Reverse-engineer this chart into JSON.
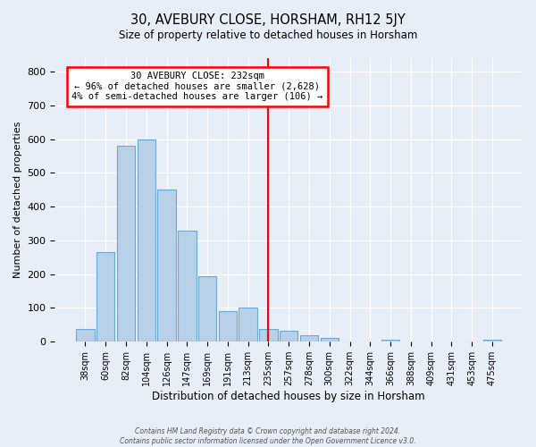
{
  "title": "30, AVEBURY CLOSE, HORSHAM, RH12 5JY",
  "subtitle": "Size of property relative to detached houses in Horsham",
  "xlabel": "Distribution of detached houses by size in Horsham",
  "ylabel": "Number of detached properties",
  "bar_labels": [
    "38sqm",
    "60sqm",
    "82sqm",
    "104sqm",
    "126sqm",
    "147sqm",
    "169sqm",
    "191sqm",
    "213sqm",
    "235sqm",
    "257sqm",
    "278sqm",
    "300sqm",
    "322sqm",
    "344sqm",
    "366sqm",
    "388sqm",
    "409sqm",
    "431sqm",
    "453sqm",
    "475sqm"
  ],
  "bar_values": [
    38,
    265,
    580,
    600,
    450,
    330,
    195,
    90,
    100,
    38,
    32,
    20,
    10,
    0,
    0,
    5,
    0,
    0,
    0,
    0,
    5
  ],
  "bar_color": "#b8d0e8",
  "bar_edge_color": "#6aaad4",
  "vline_index": 9,
  "vline_color": "red",
  "annotation_title": "30 AVEBURY CLOSE: 232sqm",
  "annotation_line1": "← 96% of detached houses are smaller (2,628)",
  "annotation_line2": "4% of semi-detached houses are larger (106) →",
  "annotation_box_color": "white",
  "annotation_box_edge": "red",
  "ylim": [
    0,
    840
  ],
  "yticks": [
    0,
    100,
    200,
    300,
    400,
    500,
    600,
    700,
    800
  ],
  "footer1": "Contains HM Land Registry data © Crown copyright and database right 2024.",
  "footer2": "Contains public sector information licensed under the Open Government Licence v3.0.",
  "background_color": "#e8eef8",
  "plot_background": "#e8eef8"
}
